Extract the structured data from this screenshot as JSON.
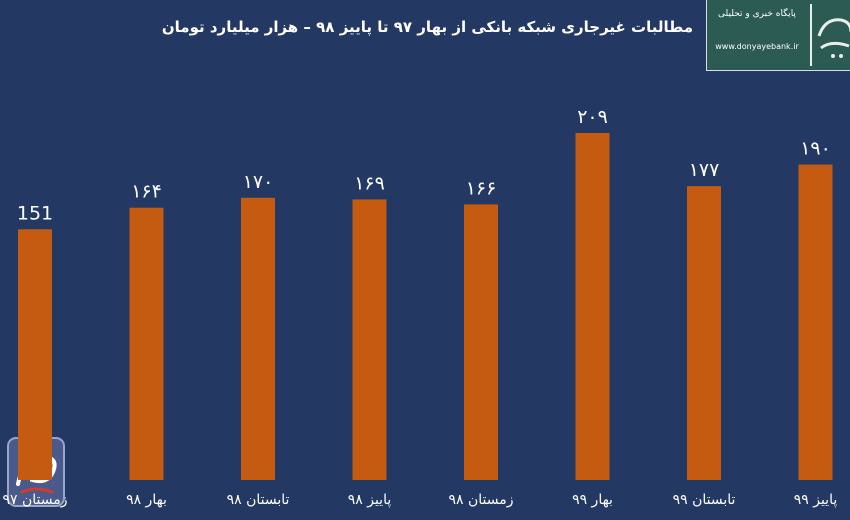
{
  "chart_data": {
    "type": "bar",
    "title": "مطالبات غیرجاری شبکه بانکی از بهار ۹۷ تا پاییز ۹۸ – هزار میلیارد تومان",
    "categories": [
      "زمستان ۹۷",
      "بهار ۹۸",
      "تابستان ۹۸",
      "پاییز ۹۸",
      "زمستان ۹۸",
      "بهار ۹۹",
      "تابستان ۹۹",
      "پاییز ۹۹"
    ],
    "values": [
      151,
      164,
      170,
      169,
      166,
      209,
      177,
      190
    ],
    "value_labels": [
      "151",
      "۱۶۴",
      "۱۷۰",
      "۱۶۹",
      "۱۶۶",
      "۲۰۹",
      "۱۷۷",
      "۱۹۰"
    ],
    "xlabel": "",
    "ylabel": "",
    "ylim": [
      0,
      209
    ],
    "grid": false,
    "legend": "none",
    "bar_color": "#c55a11",
    "background_color": "#233862",
    "text_color": "#ffffff"
  },
  "logo": {
    "tagline": "پایگاه خبری و تحلیلی",
    "url": "www.donyayebank.ir",
    "icon": "donyaye-bank-logo"
  },
  "watermark": {
    "icon": "calligraphy-badge-icon"
  }
}
